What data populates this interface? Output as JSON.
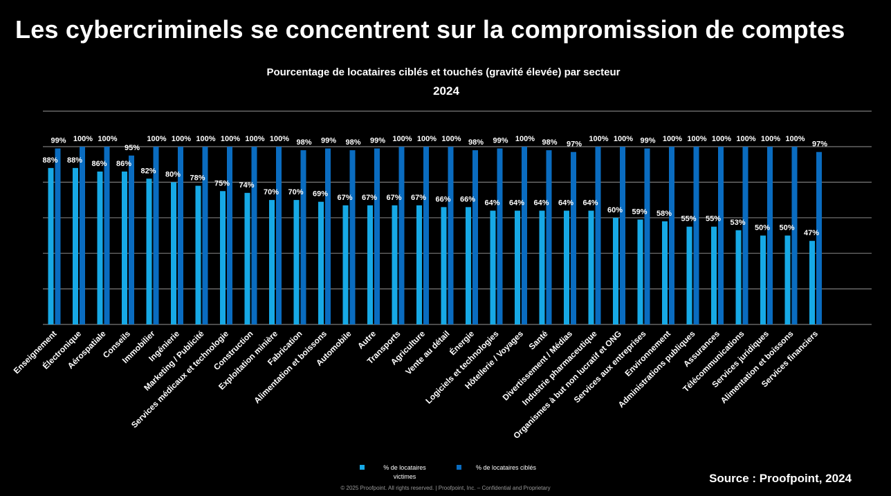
{
  "slide": {
    "headline": "Les cybercriminels se concentrent sur la compromission de comptes",
    "source": "Source : Proofpoint, 2024",
    "footer": "© 2025  Proofpoint. All rights reserved.  |  Proofpoint, Inc. – Confidential and Proprietary"
  },
  "colors": {
    "background": "#000000",
    "victims": "#17a9e6",
    "targeted": "#0a6cc0",
    "grid": "#7a7a7a"
  },
  "chart_data": {
    "type": "bar",
    "title": "Pourcentage de locataires ciblés et touchés (gravité élevée) par secteur",
    "subtitle": "2024",
    "xlabel": "",
    "ylabel": "",
    "ylim": [
      0,
      100
    ],
    "value_suffix": "%",
    "grid": true,
    "legend_position": "bottom",
    "categories": [
      "Enseignement",
      "Électronique",
      "Aérospatiale",
      "Conseils",
      "Immobilier",
      "Ingénierie",
      "Marketing / Publicité",
      "Services médicaux et technologie",
      "Construction",
      "Exploitation minière",
      "Fabrication",
      "Alimentation et boissons",
      "Automobile",
      "Autre",
      "Transports",
      "Agriculture",
      "Vente au détail",
      "Énergie",
      "Logiciels et technologies",
      "Hôtellerie / Voyages",
      "Santé",
      "Divertissement / Médias",
      "Industrie pharmaceutique",
      "Organismes à but non lucratif et ONG",
      "Services aux entreprises",
      "Environnement",
      "Administrations publiques",
      "Assurances",
      "Télécommunications",
      "Services juridiques",
      "Alimentation et boissons",
      "Services financiers"
    ],
    "series": [
      {
        "name": "% de locataires victimes",
        "legend_label_line1": "% de locataires",
        "legend_label_line2": "victimes",
        "values": [
          88,
          88,
          86,
          86,
          82,
          80,
          78,
          75,
          74,
          70,
          70,
          69,
          67,
          67,
          67,
          67,
          66,
          66,
          64,
          64,
          64,
          64,
          64,
          60,
          59,
          58,
          55,
          55,
          53,
          50,
          50,
          47
        ]
      },
      {
        "name": "% de locataires ciblés",
        "values": [
          99,
          100,
          100,
          95,
          100,
          100,
          100,
          100,
          100,
          100,
          98,
          99,
          98,
          99,
          100,
          100,
          100,
          98,
          99,
          100,
          98,
          97,
          100,
          100,
          99,
          100,
          100,
          100,
          100,
          100,
          100,
          97
        ]
      }
    ]
  }
}
